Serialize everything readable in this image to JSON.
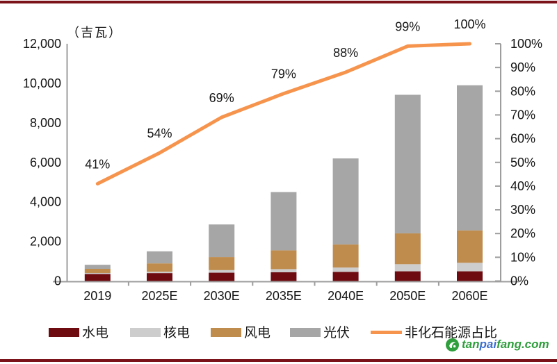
{
  "page": {
    "top_rule_color": "#7A141A",
    "bottom_rule_color": "#7A141A",
    "background": "#FFFFFF"
  },
  "chart": {
    "unit_label": "（吉瓦）",
    "axis_color": "#9D9D9D",
    "text_color": "#151515"
  },
  "watermark": {
    "logo_color": "#2F9E3C",
    "parts": [
      {
        "text": "tan",
        "color": "#2F9E3C"
      },
      {
        "text": "pai",
        "color": "#3C6ED0"
      },
      {
        "text": "fang.com",
        "color": "#2F9E3C"
      }
    ]
  },
  "chart_data": {
    "type": "bar",
    "variant": "stacked-column-with-line",
    "title": "",
    "unit": "吉瓦 (GW)",
    "grid": false,
    "legend_position": "bottom",
    "categories": [
      "2019",
      "2025E",
      "2030E",
      "2035E",
      "2040E",
      "2050E",
      "2060E"
    ],
    "series": [
      {
        "key": "hydro",
        "name": "水电",
        "color": "#6E0B10",
        "values": [
          356,
          400,
          420,
          440,
          460,
          490,
          490
        ]
      },
      {
        "key": "nuclear",
        "name": "核电",
        "color": "#CDCDCD",
        "values": [
          49,
          70,
          130,
          160,
          220,
          360,
          430
        ]
      },
      {
        "key": "wind",
        "name": "风电",
        "color": "#BF8C4D",
        "values": [
          210,
          420,
          660,
          950,
          1170,
          1560,
          1640
        ]
      },
      {
        "key": "solar",
        "name": "光伏",
        "color": "#A6A6A6",
        "values": [
          205,
          610,
          1650,
          2950,
          4350,
          7010,
          7340
        ]
      }
    ],
    "stacked_totals": [
      820,
      1500,
      2860,
      4500,
      6200,
      9420,
      9900
    ],
    "line": {
      "name": "非化石能源占比",
      "color": "#F6944D",
      "axis": "right",
      "values_pct": [
        41,
        54,
        69,
        79,
        88,
        99,
        100
      ],
      "point_labels": [
        "41%",
        "54%",
        "69%",
        "79%",
        "88%",
        "99%",
        "100%"
      ]
    },
    "left_axis": {
      "title": "（吉瓦）",
      "min": 0,
      "max": 12000,
      "tick_interval": 2000,
      "ticks": [
        "0",
        "2,000",
        "4,000",
        "6,000",
        "8,000",
        "10,000",
        "12,000"
      ]
    },
    "right_axis": {
      "min": 0,
      "max": 100,
      "tick_interval": 10,
      "ticks": [
        "0%",
        "10%",
        "20%",
        "30%",
        "40%",
        "50%",
        "60%",
        "70%",
        "80%",
        "90%",
        "100%"
      ]
    },
    "legend": [
      "水电",
      "核电",
      "风电",
      "光伏",
      "非化石能源占比"
    ]
  }
}
